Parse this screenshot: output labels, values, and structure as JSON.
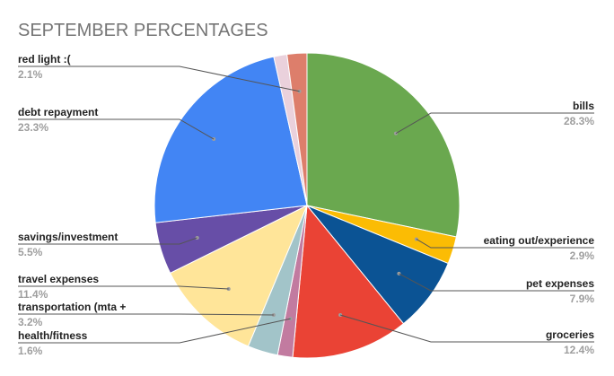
{
  "chart_data": {
    "type": "pie",
    "title": "SEPTEMBER PERCENTAGES",
    "slices": [
      {
        "label": "bills",
        "percent_label": "28.3%",
        "value": 28.3,
        "color": "#6aa84f"
      },
      {
        "label": "eating out/experience",
        "percent_label": "2.9%",
        "value": 2.9,
        "color": "#fbbc04"
      },
      {
        "label": "pet expenses",
        "percent_label": "7.9%",
        "value": 7.9,
        "color": "#0b5394"
      },
      {
        "label": "groceries",
        "percent_label": "12.4%",
        "value": 12.4,
        "color": "#ea4335"
      },
      {
        "label": "health/fitness",
        "percent_label": "1.6%",
        "value": 1.6,
        "color": "#c27ba0"
      },
      {
        "label": "transportation (mta +",
        "percent_label": "3.2%",
        "value": 3.2,
        "color": "#a2c4c9"
      },
      {
        "label": "travel expenses",
        "percent_label": "11.4%",
        "value": 11.4,
        "color": "#ffe599"
      },
      {
        "label": "savings/investment",
        "percent_label": "5.5%",
        "value": 5.5,
        "color": "#674ea7"
      },
      {
        "label": "debt repayment",
        "percent_label": "23.3%",
        "value": 23.3,
        "color": "#4285f4"
      },
      {
        "label": "",
        "percent_label": "",
        "value": 1.4,
        "color": "#ead1dc"
      },
      {
        "label": "red light :(",
        "percent_label": "2.1%",
        "value": 2.1,
        "color": "#dd7e6b"
      }
    ]
  }
}
